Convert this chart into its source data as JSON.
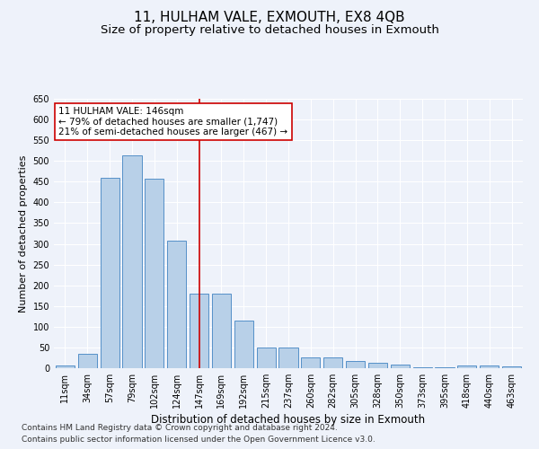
{
  "title": "11, HULHAM VALE, EXMOUTH, EX8 4QB",
  "subtitle": "Size of property relative to detached houses in Exmouth",
  "xlabel": "Distribution of detached houses by size in Exmouth",
  "ylabel": "Number of detached properties",
  "categories": [
    "11sqm",
    "34sqm",
    "57sqm",
    "79sqm",
    "102sqm",
    "124sqm",
    "147sqm",
    "169sqm",
    "192sqm",
    "215sqm",
    "237sqm",
    "260sqm",
    "282sqm",
    "305sqm",
    "328sqm",
    "350sqm",
    "373sqm",
    "395sqm",
    "418sqm",
    "440sqm",
    "463sqm"
  ],
  "values": [
    7,
    35,
    460,
    513,
    457,
    307,
    180,
    180,
    115,
    50,
    50,
    27,
    27,
    18,
    13,
    9,
    3,
    3,
    7,
    7,
    4
  ],
  "bar_color": "#b8d0e8",
  "bar_edge_color": "#5590c8",
  "background_color": "#eef2fa",
  "grid_color": "#ffffff",
  "annotation_box_text": "11 HULHAM VALE: 146sqm\n← 79% of detached houses are smaller (1,747)\n21% of semi-detached houses are larger (467) →",
  "vline_x_index": 6,
  "vline_color": "#cc0000",
  "ylim": [
    0,
    650
  ],
  "yticks": [
    0,
    50,
    100,
    150,
    200,
    250,
    300,
    350,
    400,
    450,
    500,
    550,
    600,
    650
  ],
  "footer_line1": "Contains HM Land Registry data © Crown copyright and database right 2024.",
  "footer_line2": "Contains public sector information licensed under the Open Government Licence v3.0.",
  "title_fontsize": 11,
  "subtitle_fontsize": 9.5,
  "xlabel_fontsize": 8.5,
  "ylabel_fontsize": 8,
  "tick_fontsize": 7,
  "annotation_fontsize": 7.5,
  "footer_fontsize": 6.5
}
